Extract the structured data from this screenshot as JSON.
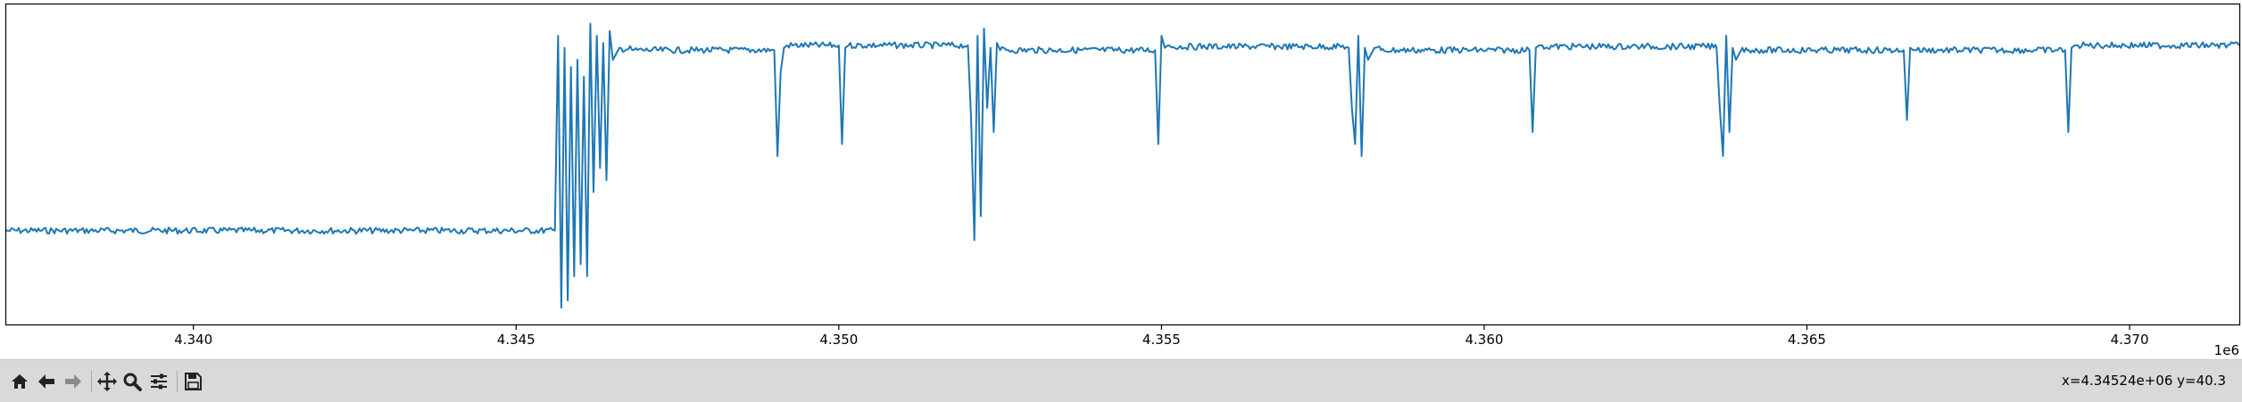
{
  "toolbar": {
    "buttons": [
      {
        "name": "home-icon"
      },
      {
        "name": "back-arrow-icon"
      },
      {
        "name": "forward-arrow-icon"
      },
      {
        "name": "pan-icon"
      },
      {
        "name": "zoom-icon"
      },
      {
        "name": "configure-subplots-icon"
      },
      {
        "name": "save-icon"
      }
    ],
    "coordinates": "x=4.34524e+06 y=40.3"
  },
  "chart_data": {
    "type": "line",
    "title": "",
    "xlabel": "",
    "ylabel": "",
    "x_offset_label": "1e6",
    "xlim": [
      4337100,
      4371700
    ],
    "x_ticks": [
      4340000,
      4345000,
      4350000,
      4355000,
      4360000,
      4365000,
      4370000
    ],
    "x_tick_labels": [
      "4.340",
      "4.345",
      "4.350",
      "4.355",
      "4.360",
      "4.365",
      "4.370"
    ],
    "y_ticks_visible": false,
    "grid": false,
    "line_color": "#1f77b4",
    "series": [
      {
        "x": [
          4337100,
          4345600,
          4345650,
          4345700,
          4345750,
          4345800,
          4345850,
          4345900,
          4345950,
          4346000,
          4346050,
          4346100,
          4346150,
          4346200,
          4346250,
          4346300,
          4346350,
          4346400,
          4346450,
          4346500,
          4346600,
          4346800,
          4349000,
          4349050,
          4349100,
          4349150,
          4349200,
          4350000,
          4350050,
          4350100,
          4350150,
          4352000,
          4352050,
          4352100,
          4352150,
          4352200,
          4352250,
          4352300,
          4352350,
          4352400,
          4352450,
          4352500,
          4352600,
          4354900,
          4354950,
          4355000,
          4355050,
          4355100,
          4357900,
          4357950,
          4358000,
          4358050,
          4358100,
          4358150,
          4358200,
          4358300,
          4358400,
          4360700,
          4360750,
          4360800,
          4360850,
          4360900,
          4363600,
          4363650,
          4363700,
          4363750,
          4363800,
          4363850,
          4363900,
          4364000,
          4364100,
          4366500,
          4366550,
          4366600,
          4366650,
          4366700,
          4369000,
          4369050,
          4369100,
          4369150,
          4369200,
          4371700
        ],
        "y": [
          3.4,
          3.4,
          11.5,
          0.2,
          11.0,
          0.5,
          10.2,
          1.5,
          10.5,
          2.0,
          9.8,
          1.5,
          12.0,
          5.0,
          11.5,
          6.0,
          11.2,
          5.5,
          11.7,
          10.5,
          11.0,
          10.9,
          10.9,
          6.5,
          10.0,
          11.0,
          11.1,
          11.1,
          7.0,
          11.0,
          11.1,
          11.1,
          8.0,
          3.0,
          11.5,
          4.0,
          11.8,
          8.5,
          11.0,
          7.5,
          11.2,
          10.9,
          10.9,
          10.9,
          7.0,
          11.5,
          11.0,
          11.1,
          11.0,
          8.5,
          7.0,
          11.5,
          6.5,
          11.0,
          10.5,
          11.0,
          10.9,
          10.9,
          7.5,
          11.0,
          11.1,
          11.1,
          11.0,
          8.5,
          6.5,
          11.5,
          7.5,
          11.0,
          10.5,
          11.0,
          10.9,
          10.9,
          8.0,
          11.0,
          10.9,
          10.9,
          10.9,
          7.5,
          11.0,
          11.1,
          11.1,
          11.1
        ]
      }
    ]
  }
}
